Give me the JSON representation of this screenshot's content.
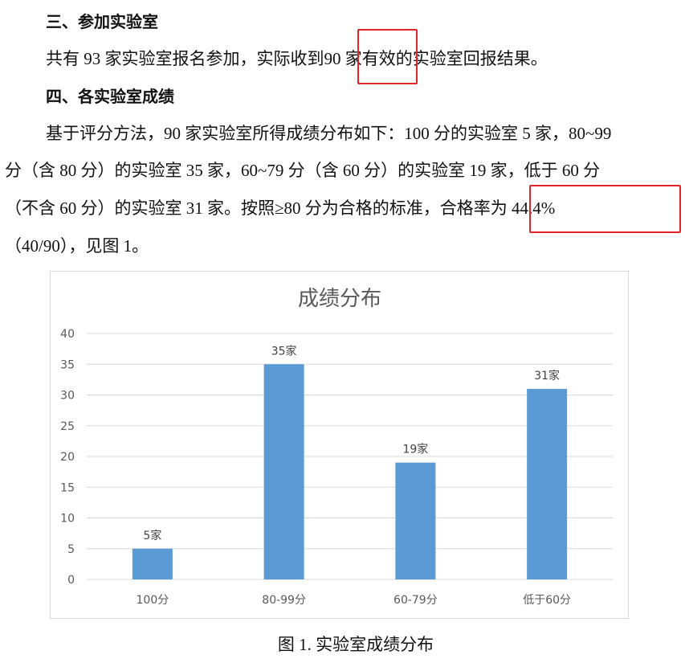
{
  "section3": {
    "heading": "三、参加实验室",
    "text_before": "共有 93 家实验室报名参加，实际收到",
    "text_highlight": "90 家",
    "text_after": "有效的实验室回报结果。"
  },
  "section4": {
    "heading": "四、各实验室成绩",
    "lines": [
      "基于评分方法，90 家实验室所得成绩分布如下：100 分的实验室 5 家，80~99",
      "分（含 80 分）的实验室 35 家，60~79 分（含 60 分）的实验室 19 家，低于 60 分",
      "（不含  60  分）的实验室  31  家。按照≥80  分为合格的标准，",
      "（40/90），见图 1。"
    ],
    "highlight": "合格率为  44.4%"
  },
  "highlight_color": "#e0262b",
  "chart_data": {
    "type": "bar",
    "title": "成绩分布",
    "categories": [
      "100分",
      "80-99分",
      "60-79分",
      "低于60分"
    ],
    "values": [
      5,
      35,
      19,
      31
    ],
    "data_labels": [
      "5家",
      "35家",
      "19家",
      "31家"
    ],
    "ylim": [
      0,
      40
    ],
    "yticks": [
      0,
      5,
      10,
      15,
      20,
      25,
      30,
      35,
      40
    ],
    "grid": true,
    "bar_color": "#5b9bd5",
    "xlabel": "",
    "ylabel": ""
  },
  "caption": "图 1.  实验室成绩分布"
}
